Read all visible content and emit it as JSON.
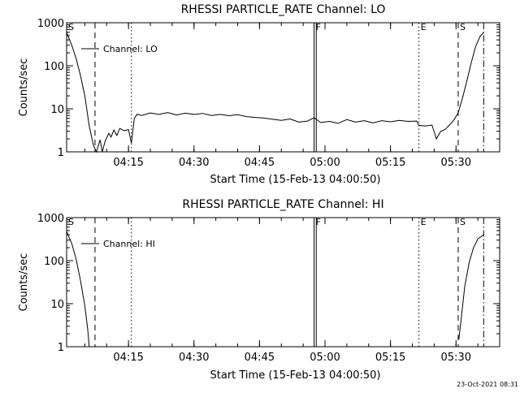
{
  "footer": {
    "timestamp": "23-Oct-2021 08:31"
  },
  "chart_data": [
    {
      "type": "line",
      "title": "RHESSI PARTICLE_RATE Channel: LO",
      "xlabel": "Start Time (15-Feb-13 04:00:50)",
      "ylabel": "Counts/sec",
      "y_scale": "log",
      "ylim": [
        1,
        1000
      ],
      "xlim": [
        "04:00:50",
        "05:40:00"
      ],
      "x_ticks": [
        "04:15",
        "04:30",
        "04:45",
        "05:00",
        "05:15",
        "05:30"
      ],
      "y_ticks": [
        "1",
        "10",
        "100",
        "1000"
      ],
      "legend": {
        "placement": "top-left",
        "entries": [
          "Channel: LO"
        ]
      },
      "markers": [
        {
          "label": "S",
          "time": "04:00:50",
          "style": "dash-dot"
        },
        {
          "label": "",
          "time": "04:07:20",
          "style": "dashed"
        },
        {
          "label": "",
          "time": "04:15:40",
          "style": "dotted"
        },
        {
          "label": "F",
          "time": "04:57:30",
          "style": "solid"
        },
        {
          "label": "",
          "time": "04:58:00",
          "style": "solid"
        },
        {
          "label": "E",
          "time": "05:21:30",
          "style": "dotted"
        },
        {
          "label": "S",
          "time": "05:30:30",
          "style": "dashed"
        },
        {
          "label": "",
          "time": "05:36:20",
          "style": "dash-dot"
        }
      ],
      "series": [
        {
          "values": [
            [
              "04:00:50",
              600
            ],
            [
              "04:02:00",
              300
            ],
            [
              "04:03:00",
              150
            ],
            [
              "04:04:00",
              60
            ],
            [
              "04:05:00",
              20
            ],
            [
              "04:06:00",
              4
            ],
            [
              "04:07:00",
              1.4
            ],
            [
              "04:07:40",
              1
            ],
            [
              "04:08:30",
              1.9
            ],
            [
              "04:09:00",
              1
            ],
            [
              "04:09:40",
              1.8
            ],
            [
              "04:10:30",
              2.7
            ],
            [
              "04:11:00",
              2.2
            ],
            [
              "04:11:40",
              3.2
            ],
            [
              "04:12:20",
              2.4
            ],
            [
              "04:13:00",
              3.5
            ],
            [
              "04:14:00",
              3.1
            ],
            [
              "04:15:00",
              3.3
            ],
            [
              "04:15:40",
              1.6
            ],
            [
              "04:16:20",
              6
            ],
            [
              "04:17:00",
              7.5
            ],
            [
              "04:18:00",
              7
            ],
            [
              "04:20:00",
              8
            ],
            [
              "04:22:00",
              7.4
            ],
            [
              "04:24:00",
              8.2
            ],
            [
              "04:26:00",
              7.2
            ],
            [
              "04:28:00",
              7.9
            ],
            [
              "04:30:00",
              7.4
            ],
            [
              "04:32:00",
              7.8
            ],
            [
              "04:34:00",
              7
            ],
            [
              "04:36:00",
              7.4
            ],
            [
              "04:38:00",
              6.9
            ],
            [
              "04:40:00",
              7.3
            ],
            [
              "04:42:00",
              6.6
            ],
            [
              "04:44:00",
              6.3
            ],
            [
              "04:46:00",
              6.1
            ],
            [
              "04:48:00",
              5.7
            ],
            [
              "04:50:00",
              5.4
            ],
            [
              "04:52:00",
              5.8
            ],
            [
              "04:54:00",
              4.9
            ],
            [
              "04:56:00",
              5.2
            ],
            [
              "04:57:30",
              6.2
            ],
            [
              "04:59:00",
              4.8
            ],
            [
              "05:01:00",
              5.1
            ],
            [
              "05:03:00",
              4.6
            ],
            [
              "05:05:00",
              5.6
            ],
            [
              "05:07:00",
              4.9
            ],
            [
              "05:09:00",
              5.3
            ],
            [
              "05:11:00",
              4.7
            ],
            [
              "05:13:00",
              5.3
            ],
            [
              "05:15:00",
              5
            ],
            [
              "05:17:00",
              5.4
            ],
            [
              "05:19:00",
              5.1
            ],
            [
              "05:21:00",
              5.2
            ],
            [
              "05:21:30",
              4.1
            ],
            [
              "05:23:00",
              4
            ],
            [
              "05:24:30",
              4.2
            ],
            [
              "05:25:30",
              2
            ],
            [
              "05:26:30",
              3
            ],
            [
              "05:27:30",
              3.3
            ],
            [
              "05:28:30",
              4.2
            ],
            [
              "05:29:30",
              5.5
            ],
            [
              "05:30:30",
              8
            ],
            [
              "05:31:30",
              18
            ],
            [
              "05:32:30",
              45
            ],
            [
              "05:33:30",
              120
            ],
            [
              "05:34:30",
              280
            ],
            [
              "05:35:30",
              480
            ],
            [
              "05:36:20",
              600
            ]
          ]
        }
      ]
    },
    {
      "type": "line",
      "title": "RHESSI PARTICLE_RATE Channel: HI",
      "xlabel": "Start Time (15-Feb-13 04:00:50)",
      "ylabel": "Counts/sec",
      "y_scale": "log",
      "ylim": [
        1,
        1000
      ],
      "xlim": [
        "04:00:50",
        "05:40:00"
      ],
      "x_ticks": [
        "04:15",
        "04:30",
        "04:45",
        "05:00",
        "05:15",
        "05:30"
      ],
      "y_ticks": [
        "1",
        "10",
        "100",
        "1000"
      ],
      "legend": {
        "placement": "top-left",
        "entries": [
          "Channel: HI"
        ]
      },
      "markers": [
        {
          "label": "S",
          "time": "04:00:50",
          "style": "dash-dot"
        },
        {
          "label": "",
          "time": "04:07:20",
          "style": "dashed"
        },
        {
          "label": "",
          "time": "04:15:40",
          "style": "dotted"
        },
        {
          "label": "F",
          "time": "04:57:30",
          "style": "solid"
        },
        {
          "label": "",
          "time": "04:58:00",
          "style": "solid"
        },
        {
          "label": "E",
          "time": "05:21:30",
          "style": "dotted"
        },
        {
          "label": "S",
          "time": "05:30:30",
          "style": "dashed"
        },
        {
          "label": "",
          "time": "05:36:20",
          "style": "dash-dot"
        }
      ],
      "series": [
        {
          "values": [
            [
              "04:00:50",
              480
            ],
            [
              "04:02:00",
              250
            ],
            [
              "04:03:00",
              110
            ],
            [
              "04:04:00",
              35
            ],
            [
              "04:05:00",
              9
            ],
            [
              "04:05:40",
              2.5
            ],
            [
              "04:06:00",
              1
            ],
            [
              "05:30:40",
              1.5
            ],
            [
              "05:31:00",
              3
            ],
            [
              "05:32:00",
              25
            ],
            [
              "05:33:00",
              90
            ],
            [
              "05:34:00",
              200
            ],
            [
              "05:35:00",
              320
            ],
            [
              "05:36:20",
              400
            ]
          ]
        }
      ]
    }
  ]
}
